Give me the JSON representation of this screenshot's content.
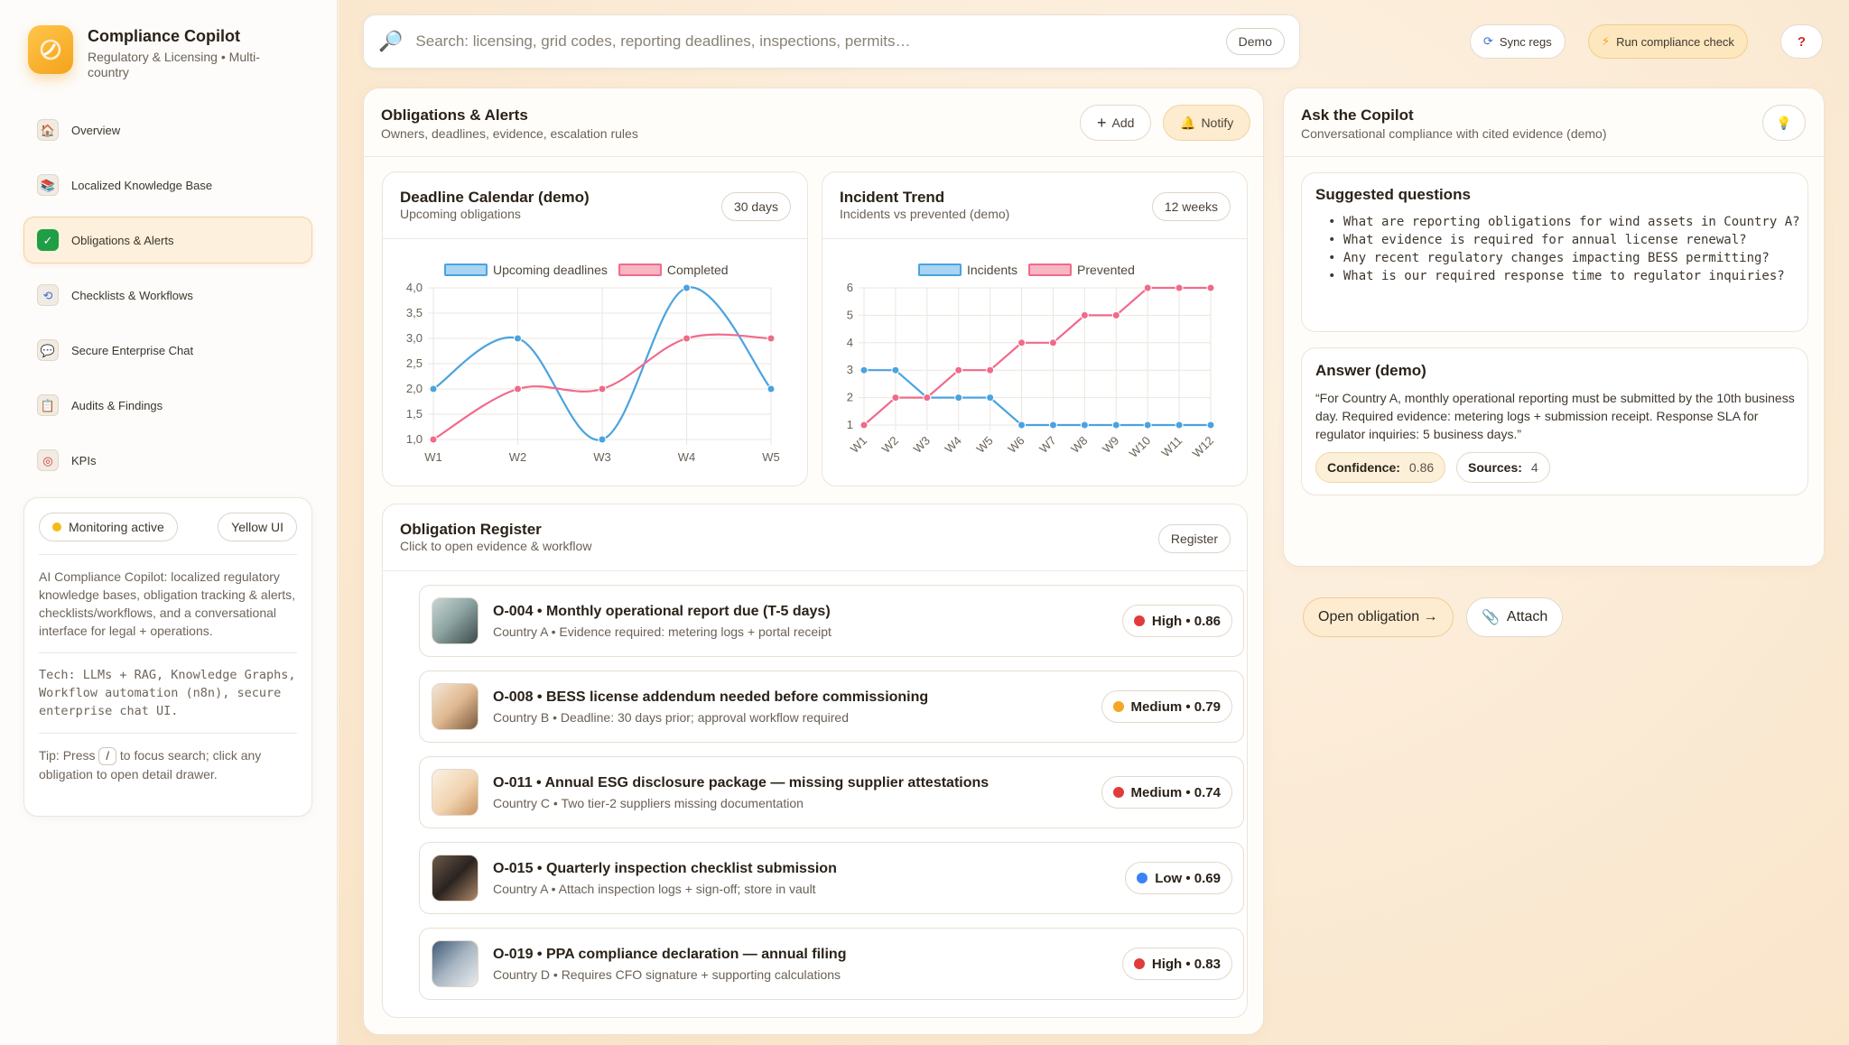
{
  "brand": {
    "title": "Compliance Copilot",
    "subtitle": "Regulatory & Licensing • Multi-country"
  },
  "nav": [
    {
      "label": "Overview",
      "icon": "house-icon",
      "active": false
    },
    {
      "label": "Localized Knowledge Base",
      "icon": "books-icon",
      "active": false
    },
    {
      "label": "Obligations & Alerts",
      "icon": "checkmark-icon",
      "active": true
    },
    {
      "label": "Checklists & Workflows",
      "icon": "repeat-icon",
      "active": false
    },
    {
      "label": "Secure Enterprise Chat",
      "icon": "chat-bubble-icon",
      "active": false
    },
    {
      "label": "Audits & Findings",
      "icon": "clipboard-icon",
      "active": false
    },
    {
      "label": "KPIs",
      "icon": "target-icon",
      "active": false
    }
  ],
  "info": {
    "monitoring": "Monitoring active",
    "theme": "Yellow UI",
    "description": "AI Compliance Copilot: localized regulatory knowledge bases, obligation tracking & alerts, checklists/workflows, and a conversational interface for legal + operations.",
    "tech": "Tech: LLMs + RAG, Knowledge Graphs, Workflow automation (n8n), secure enterprise chat UI.",
    "tip_prefix": "Tip: Press",
    "tip_key": "/",
    "tip_suffix": "to focus search; click any obligation to open detail drawer."
  },
  "search": {
    "placeholder": "Search: licensing, grid codes, reporting deadlines, inspections, permits…",
    "mode": "Demo"
  },
  "topbar": {
    "sync": "Sync regs",
    "run": "Run compliance check",
    "help": "?"
  },
  "obligations_panel": {
    "title": "Obligations & Alerts",
    "subtitle": "Owners, deadlines, evidence, escalation rules",
    "add": "Add",
    "notify": "Notify"
  },
  "deadline_chart": {
    "title": "Deadline Calendar (demo)",
    "subtitle": "Upcoming obligations",
    "range": "30 days"
  },
  "incident_chart": {
    "title": "Incident Trend",
    "subtitle": "Incidents vs prevented (demo)",
    "range": "12 weeks"
  },
  "chart_data": [
    {
      "type": "line",
      "title": "Deadline Calendar (demo)",
      "categories": [
        "W1",
        "W2",
        "W3",
        "W4",
        "W5"
      ],
      "ylim": [
        1.0,
        4.0
      ],
      "yticks": [
        "4,0",
        "3,5",
        "3,0",
        "2,5",
        "2,0",
        "1,5",
        "1,0"
      ],
      "series": [
        {
          "name": "Upcoming deadlines",
          "color": "#4aa3df",
          "values": [
            2,
            3,
            1,
            4,
            2
          ]
        },
        {
          "name": "Completed",
          "color": "#f06a8a",
          "values": [
            1,
            2,
            2,
            3,
            3
          ]
        }
      ],
      "legend": "top-center",
      "grid": true,
      "smooth": true
    },
    {
      "type": "line",
      "title": "Incident Trend",
      "categories": [
        "W1",
        "W2",
        "W3",
        "W4",
        "W5",
        "W6",
        "W7",
        "W8",
        "W9",
        "W10",
        "W11",
        "W12"
      ],
      "ylim": [
        1,
        6
      ],
      "yticks": [
        "6",
        "5",
        "4",
        "3",
        "2",
        "1"
      ],
      "series": [
        {
          "name": "Incidents",
          "color": "#4aa3df",
          "values": [
            3,
            3,
            2,
            2,
            2,
            1,
            1,
            1,
            1,
            1,
            1,
            1
          ]
        },
        {
          "name": "Prevented",
          "color": "#f06a8a",
          "values": [
            1,
            2,
            2,
            3,
            3,
            4,
            4,
            5,
            5,
            6,
            6,
            6
          ]
        }
      ],
      "legend": "top-center",
      "grid": true,
      "smooth": false
    }
  ],
  "register": {
    "title": "Obligation Register",
    "subtitle": "Click to open evidence & workflow",
    "chip": "Register",
    "items": [
      {
        "title": "O-004 • Monthly operational report due (T-5 days)",
        "sub": "Country A • Evidence required: metering logs + portal receipt",
        "badge": "High • 0.86",
        "color": "#e23b3b",
        "thumb": "photo-thumbnail-laptop"
      },
      {
        "title": "O-008 • BESS license addendum needed before commissioning",
        "sub": "Country B • Deadline: 30 days prior; approval workflow required",
        "badge": "Medium • 0.79",
        "color": "#f5a623",
        "thumb": "photo-thumbnail-hands"
      },
      {
        "title": "O-011 • Annual ESG disclosure package — missing supplier attestations",
        "sub": "Country C • Two tier-2 suppliers missing documentation",
        "badge": "Medium • 0.74",
        "color": "#e23b3b",
        "thumb": "photo-thumbnail-signing"
      },
      {
        "title": "O-015 • Quarterly inspection checklist submission",
        "sub": "Country A • Attach inspection logs + sign-off; store in vault",
        "badge": "Low • 0.69",
        "color": "#3b82f6",
        "thumb": "photo-thumbnail-calculator"
      },
      {
        "title": "O-019 • PPA compliance declaration — annual filing",
        "sub": "Country D • Requires CFO signature + supporting calculations",
        "badge": "High • 0.83",
        "color": "#e23b3b",
        "thumb": "photo-thumbnail-documents"
      }
    ]
  },
  "copilot": {
    "title": "Ask the Copilot",
    "subtitle": "Conversational compliance with cited evidence (demo)",
    "suggested_title": "Suggested questions",
    "questions": [
      "• What are reporting obligations for wind assets in Country A?",
      "• What evidence is required for annual license renewal?",
      "• Any recent regulatory changes impacting BESS permitting?",
      "• What is our required response time to regulator inquiries?"
    ],
    "answer_title": "Answer (demo)",
    "answer": "“For Country A, monthly operational reporting must be submitted by the 10th business day. Required evidence: metering logs + submission receipt. Response SLA for regulator inquiries: 5 business days.”",
    "confidence_label": "Confidence:",
    "confidence_value": "0.86",
    "sources_label": "Sources:",
    "sources_value": "4",
    "open_button": "Open obligation →",
    "attach_button": "Attach"
  }
}
